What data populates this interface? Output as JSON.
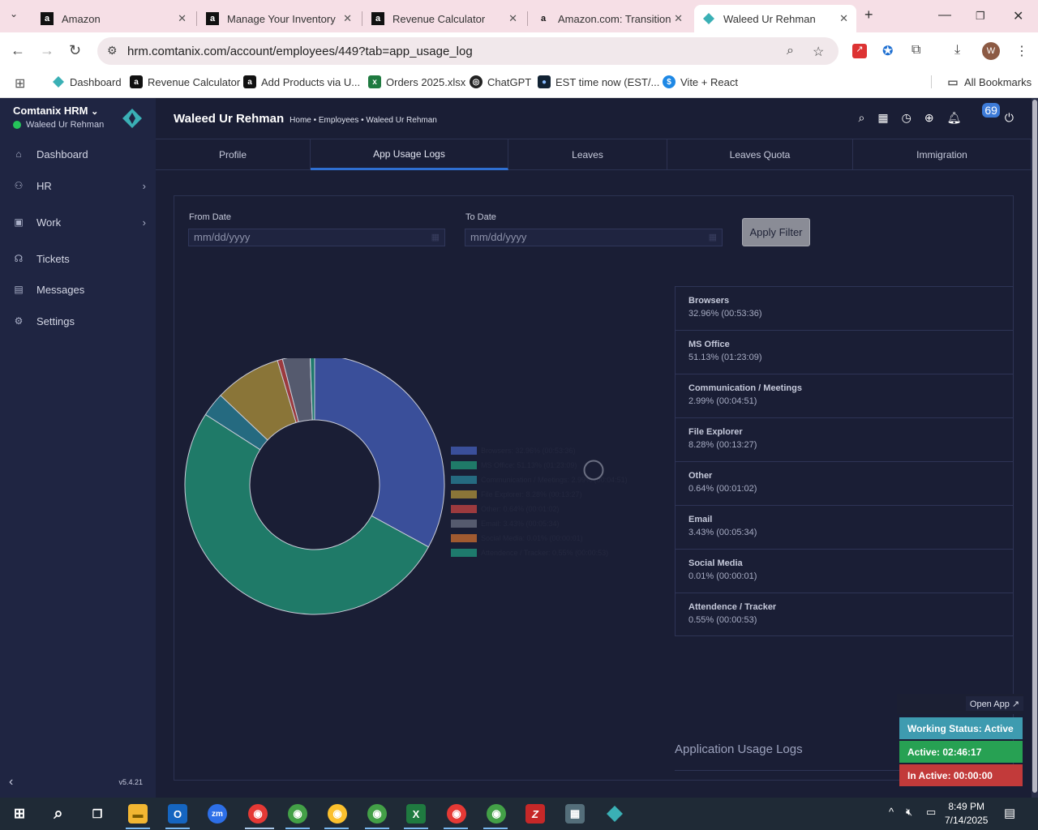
{
  "browser": {
    "tabs": [
      {
        "title": "Amazon",
        "favicon": "amazon-a",
        "active": false
      },
      {
        "title": "Manage Your Inventory",
        "favicon": "amazon-a",
        "active": false
      },
      {
        "title": "Revenue Calculator",
        "favicon": "amazon-a",
        "active": false
      },
      {
        "title": "Amazon.com: Transition f",
        "favicon": "amazon-smile",
        "active": false
      },
      {
        "title": "Waleed Ur Rehman",
        "favicon": "comtanix-gem",
        "active": true
      }
    ],
    "url": "hrm.comtanix.com/account/employees/449?tab=app_usage_log",
    "profile_initial": "W",
    "bookmarks": [
      {
        "label": "Dashboard",
        "icon": "comtanix-gem"
      },
      {
        "label": "Revenue Calculator",
        "icon": "amazon-a"
      },
      {
        "label": "Add Products via U...",
        "icon": "amazon-a"
      },
      {
        "label": "Orders 2025.xlsx",
        "icon": "excel-icon"
      },
      {
        "label": "ChatGPT",
        "icon": "chatgpt-icon"
      },
      {
        "label": "EST time now (EST/...",
        "icon": "globe-icon"
      },
      {
        "label": "Vite + React",
        "icon": "dollar-icon"
      }
    ],
    "all_bookmarks": "All Bookmarks"
  },
  "sidebar": {
    "brand": "Comtanix HRM",
    "user": "Waleed Ur Rehman",
    "items": [
      {
        "label": "Dashboard",
        "icon": "home-icon",
        "has_children": false
      },
      {
        "label": "HR",
        "icon": "users-icon",
        "has_children": true
      },
      {
        "label": "Work",
        "icon": "briefcase-icon",
        "has_children": true
      },
      {
        "label": "Tickets",
        "icon": "headset-icon",
        "has_children": false
      },
      {
        "label": "Messages",
        "icon": "message-icon",
        "has_children": false
      },
      {
        "label": "Settings",
        "icon": "gear-icon",
        "has_children": false
      }
    ],
    "version": "v5.4.21"
  },
  "header": {
    "title": "Waleed Ur Rehman",
    "breadcrumb": "Home • Employees • Waleed Ur Rehman",
    "notification_count": "69"
  },
  "profile_tabs": [
    {
      "label": "Profile",
      "active": false
    },
    {
      "label": "App Usage Logs",
      "active": true
    },
    {
      "label": "Leaves",
      "active": false
    },
    {
      "label": "Leaves Quota",
      "active": false
    },
    {
      "label": "Immigration",
      "active": false
    }
  ],
  "filter": {
    "from_label": "From Date",
    "from_placeholder": "mm/dd/yyyy",
    "to_label": "To Date",
    "to_placeholder": "mm/dd/yyyy",
    "apply_label": "Apply Filter"
  },
  "usage": [
    {
      "name": "Browsers",
      "value": "32.96% (00:53:36)"
    },
    {
      "name": "MS Office",
      "value": "51.13% (01:23:09)"
    },
    {
      "name": "Communication / Meetings",
      "value": "2.99% (00:04:51)"
    },
    {
      "name": "File Explorer",
      "value": "8.28% (00:13:27)"
    },
    {
      "name": "Other",
      "value": "0.64% (00:01:02)"
    },
    {
      "name": "Email",
      "value": "3.43% (00:05:34)"
    },
    {
      "name": "Social Media",
      "value": "0.01% (00:00:01)"
    },
    {
      "name": "Attendence / Tracker",
      "value": "0.55% (00:00:53)"
    }
  ],
  "chart_data": {
    "type": "pie",
    "categories": [
      "Browsers",
      "MS Office",
      "Communication / Meetings",
      "File Explorer",
      "Other",
      "Email",
      "Social Media",
      "Attendence / Tracker"
    ],
    "values": [
      32.96,
      51.13,
      2.99,
      8.28,
      0.64,
      3.43,
      0.01,
      0.55
    ],
    "legend": [
      "Browsers: 32.96% (00:53:36)",
      "MS Office: 51.13% (01:23:09)",
      "Communication / Meetings: 2.99% (00:04:51)",
      "File Explorer: 8.28% (00:13:27)",
      "Other: 0.64% (00:01:02)",
      "Email: 3.43% (00:05:34)",
      "Social Media: 0.01% (00:00:01)",
      "Attendence / Tracker: 0.55% (00:00:53)"
    ],
    "colors": [
      "#3a4f9a",
      "#1f7a68",
      "#256a80",
      "#8a7538",
      "#9c3a3e",
      "#555a6e",
      "#a05a30",
      "#1e7a6c"
    ],
    "legend_position": "right",
    "donut": true
  },
  "logs": {
    "title": "Application Usage Logs"
  },
  "tracker": {
    "open_app": "Open App ↗",
    "status": "Working Status: Active",
    "active": "Active: 02:46:17",
    "inactive": "In Active: 00:00:00",
    "colors": {
      "status": "#3e9bb0",
      "active": "#27a153",
      "inactive": "#c23a3a"
    }
  },
  "taskbar": {
    "time": "8:49 PM",
    "date": "7/14/2025"
  }
}
